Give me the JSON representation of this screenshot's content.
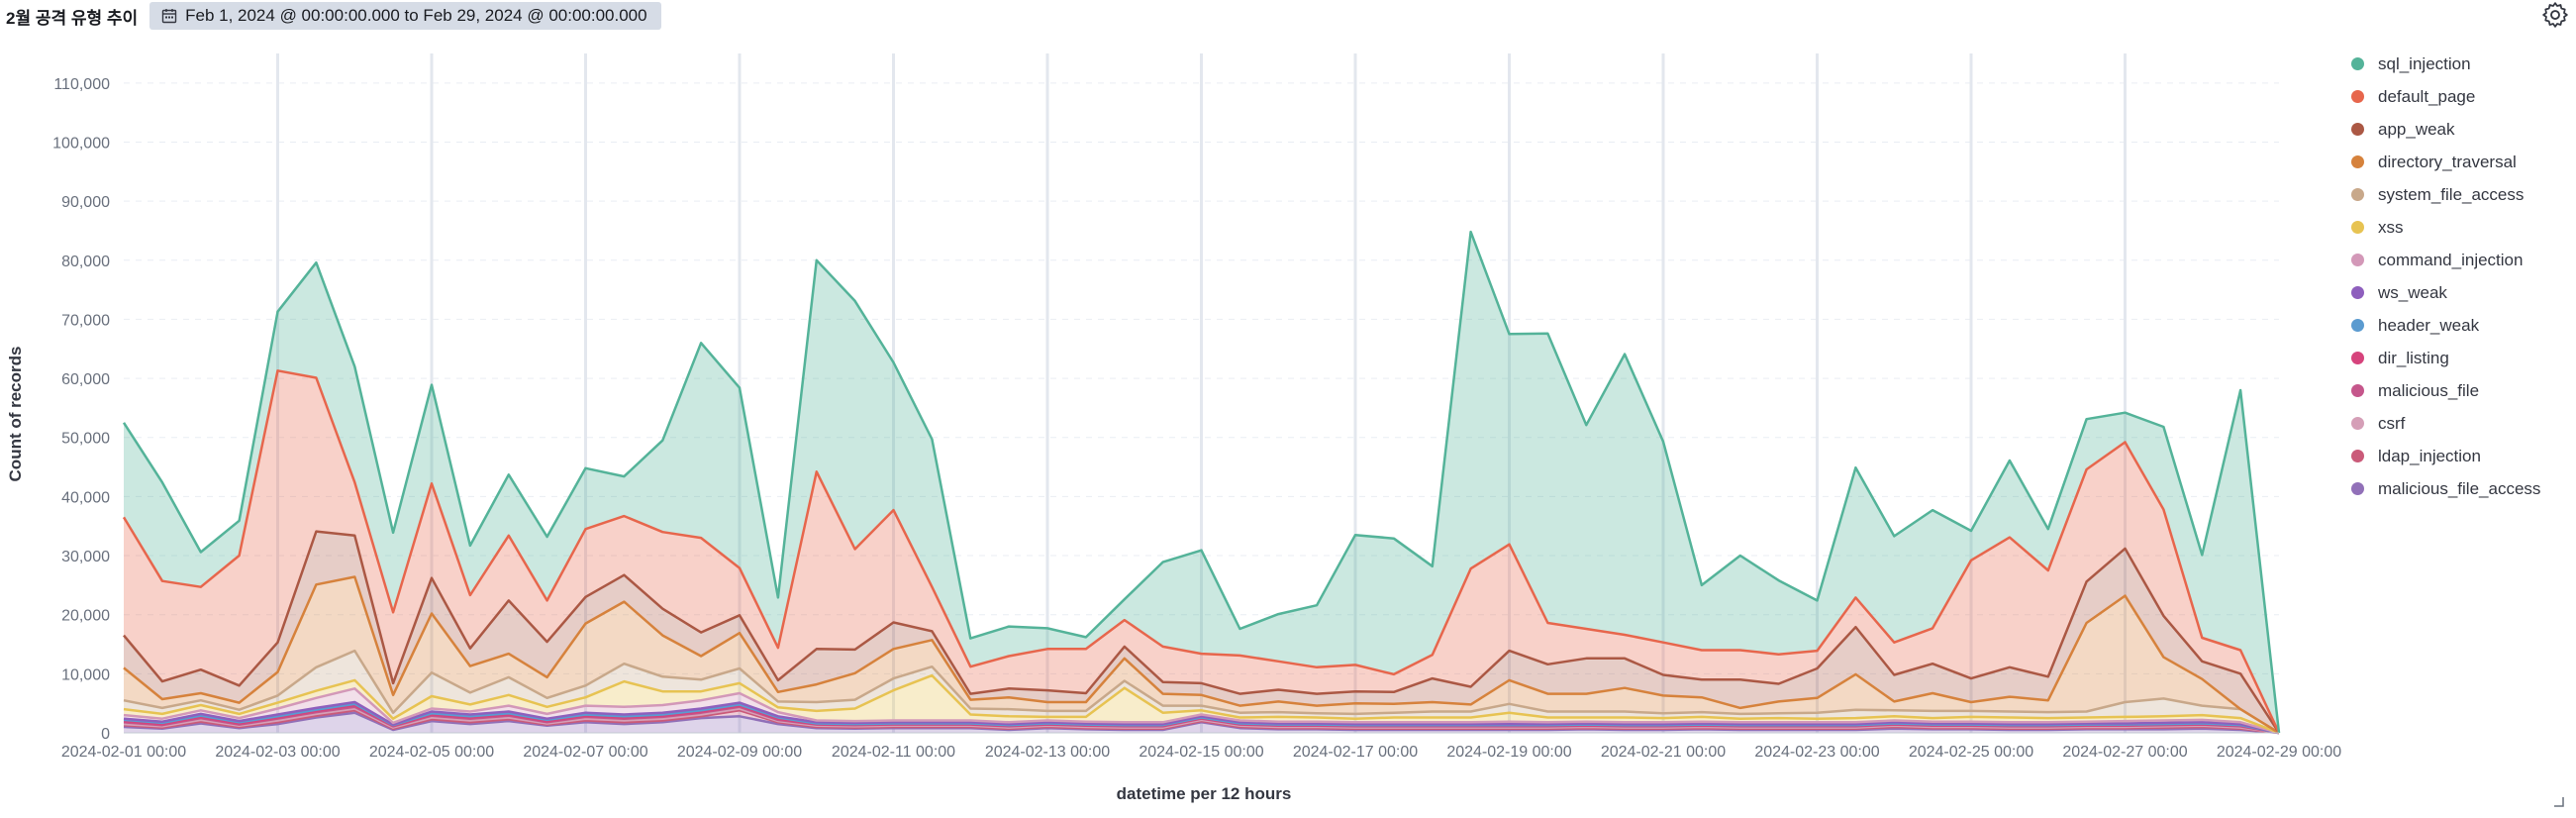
{
  "panel": {
    "title": "2월 공격 유형 추이",
    "time_range": "Feb 1, 2024 @ 00:00:00.000 to Feb 29, 2024 @ 00:00:00.000"
  },
  "chart_data": {
    "type": "area",
    "stacked": true,
    "title": "",
    "xlabel": "datetime per 12 hours",
    "ylabel": "Count of records",
    "ylim": [
      0,
      115000
    ],
    "y_ticks": [
      0,
      10000,
      20000,
      30000,
      40000,
      50000,
      60000,
      70000,
      80000,
      90000,
      100000,
      110000
    ],
    "y_tick_labels": [
      "0",
      "10,000",
      "20,000",
      "30,000",
      "40,000",
      "50,000",
      "60,000",
      "70,000",
      "80,000",
      "90,000",
      "100,000",
      "110,000"
    ],
    "x_tick_labels": [
      "2024-02-01 00:00",
      "2024-02-03 00:00",
      "2024-02-05 00:00",
      "2024-02-07 00:00",
      "2024-02-09 00:00",
      "2024-02-11 00:00",
      "2024-02-13 00:00",
      "2024-02-15 00:00",
      "2024-02-17 00:00",
      "2024-02-19 00:00",
      "2024-02-21 00:00",
      "2024-02-23 00:00",
      "2024-02-25 00:00",
      "2024-02-27 00:00",
      "2024-02-29 00:00"
    ],
    "grid": true,
    "legend_position": "right",
    "x": [
      "2024-02-01 00:00",
      "2024-02-01 12:00",
      "2024-02-02 00:00",
      "2024-02-02 12:00",
      "2024-02-03 00:00",
      "2024-02-03 12:00",
      "2024-02-04 00:00",
      "2024-02-04 12:00",
      "2024-02-05 00:00",
      "2024-02-05 12:00",
      "2024-02-06 00:00",
      "2024-02-06 12:00",
      "2024-02-07 00:00",
      "2024-02-07 12:00",
      "2024-02-08 00:00",
      "2024-02-08 12:00",
      "2024-02-09 00:00",
      "2024-02-09 12:00",
      "2024-02-10 00:00",
      "2024-02-10 12:00",
      "2024-02-11 00:00",
      "2024-02-11 12:00",
      "2024-02-12 00:00",
      "2024-02-12 12:00",
      "2024-02-13 00:00",
      "2024-02-13 12:00",
      "2024-02-14 00:00",
      "2024-02-14 12:00",
      "2024-02-15 00:00",
      "2024-02-15 12:00",
      "2024-02-16 00:00",
      "2024-02-16 12:00",
      "2024-02-17 00:00",
      "2024-02-17 12:00",
      "2024-02-18 00:00",
      "2024-02-18 12:00",
      "2024-02-19 00:00",
      "2024-02-19 12:00",
      "2024-02-20 00:00",
      "2024-02-20 12:00",
      "2024-02-21 00:00",
      "2024-02-21 12:00",
      "2024-02-22 00:00",
      "2024-02-22 12:00",
      "2024-02-23 00:00",
      "2024-02-23 12:00",
      "2024-02-24 00:00",
      "2024-02-24 12:00",
      "2024-02-25 00:00",
      "2024-02-25 12:00",
      "2024-02-26 00:00",
      "2024-02-26 12:00",
      "2024-02-27 00:00",
      "2024-02-27 12:00",
      "2024-02-28 00:00",
      "2024-02-28 12:00",
      "2024-02-29 00:00"
    ],
    "series": [
      {
        "name": "malicious_file_access",
        "color": "#9170b8",
        "values": [
          1000,
          700,
          1600,
          800,
          1500,
          2600,
          3400,
          500,
          2000,
          1500,
          2000,
          1200,
          1800,
          1500,
          1800,
          2500,
          2800,
          1500,
          800,
          700,
          800,
          800,
          800,
          500,
          800,
          600,
          500,
          500,
          1800,
          800,
          600,
          600,
          500,
          500,
          500,
          500,
          500,
          500,
          600,
          500,
          500,
          600,
          500,
          500,
          500,
          500,
          700,
          600,
          600,
          500,
          500,
          600,
          600,
          600,
          700,
          500,
          0
        ]
      },
      {
        "name": "ldap_injection",
        "color": "#ca5a79",
        "values": [
          300,
          200,
          300,
          200,
          300,
          300,
          400,
          200,
          300,
          300,
          300,
          200,
          300,
          300,
          300,
          300,
          1000,
          300,
          200,
          200,
          200,
          200,
          200,
          200,
          200,
          200,
          200,
          200,
          200,
          200,
          200,
          200,
          200,
          200,
          200,
          200,
          200,
          200,
          200,
          200,
          200,
          200,
          200,
          200,
          200,
          200,
          300,
          200,
          200,
          200,
          200,
          200,
          200,
          300,
          300,
          200,
          0
        ]
      },
      {
        "name": "csrf",
        "color": "#d59fb7",
        "values": [
          200,
          200,
          300,
          200,
          300,
          300,
          300,
          200,
          300,
          300,
          300,
          200,
          300,
          300,
          300,
          300,
          300,
          200,
          200,
          200,
          200,
          200,
          200,
          200,
          200,
          200,
          200,
          200,
          200,
          200,
          200,
          200,
          200,
          200,
          200,
          200,
          200,
          200,
          200,
          200,
          200,
          200,
          200,
          200,
          200,
          200,
          200,
          200,
          200,
          200,
          200,
          200,
          200,
          200,
          200,
          200,
          0
        ]
      },
      {
        "name": "malicious_file",
        "color": "#c5568b",
        "values": [
          300,
          200,
          300,
          200,
          300,
          300,
          300,
          200,
          300,
          300,
          300,
          200,
          300,
          300,
          300,
          300,
          300,
          200,
          200,
          200,
          200,
          200,
          200,
          200,
          200,
          200,
          200,
          200,
          200,
          200,
          200,
          200,
          200,
          200,
          200,
          200,
          200,
          200,
          200,
          200,
          200,
          200,
          200,
          200,
          200,
          200,
          200,
          200,
          200,
          200,
          200,
          200,
          200,
          200,
          200,
          200,
          0
        ]
      },
      {
        "name": "dir_listing",
        "color": "#d6437c",
        "values": [
          200,
          200,
          200,
          200,
          200,
          200,
          300,
          100,
          200,
          200,
          200,
          200,
          200,
          200,
          200,
          200,
          200,
          200,
          100,
          100,
          100,
          100,
          100,
          100,
          100,
          100,
          100,
          100,
          100,
          100,
          100,
          100,
          100,
          100,
          100,
          100,
          100,
          100,
          100,
          100,
          100,
          100,
          100,
          100,
          100,
          100,
          100,
          100,
          100,
          100,
          100,
          100,
          100,
          100,
          100,
          100,
          0
        ]
      },
      {
        "name": "header_weak",
        "color": "#5b9bd0",
        "values": [
          200,
          200,
          200,
          200,
          200,
          200,
          200,
          100,
          200,
          200,
          200,
          200,
          200,
          200,
          200,
          200,
          200,
          200,
          100,
          100,
          100,
          100,
          100,
          100,
          100,
          100,
          100,
          100,
          100,
          100,
          100,
          100,
          100,
          100,
          100,
          100,
          100,
          100,
          100,
          100,
          100,
          100,
          100,
          100,
          100,
          100,
          100,
          100,
          100,
          100,
          100,
          100,
          100,
          100,
          100,
          100,
          0
        ]
      },
      {
        "name": "ws_weak",
        "color": "#8e5fbd",
        "values": [
          200,
          200,
          300,
          200,
          300,
          300,
          300,
          100,
          300,
          300,
          300,
          200,
          300,
          300,
          300,
          300,
          300,
          200,
          200,
          200,
          200,
          200,
          200,
          200,
          200,
          200,
          200,
          200,
          200,
          200,
          200,
          200,
          200,
          200,
          200,
          200,
          200,
          200,
          200,
          200,
          200,
          200,
          200,
          200,
          200,
          200,
          200,
          200,
          200,
          200,
          200,
          200,
          200,
          200,
          200,
          200,
          0
        ]
      },
      {
        "name": "command_injection",
        "color": "#d398b8",
        "values": [
          600,
          500,
          600,
          500,
          1000,
          1700,
          2300,
          300,
          500,
          500,
          1000,
          800,
          1200,
          1300,
          1300,
          1400,
          1600,
          700,
          300,
          300,
          300,
          300,
          300,
          300,
          300,
          300,
          300,
          300,
          300,
          300,
          300,
          300,
          300,
          300,
          300,
          300,
          400,
          300,
          300,
          300,
          300,
          300,
          300,
          300,
          300,
          300,
          300,
          300,
          300,
          300,
          300,
          300,
          400,
          400,
          400,
          300,
          0
        ]
      },
      {
        "name": "xss",
        "color": "#e7c352",
        "values": [
          1000,
          800,
          900,
          700,
          1000,
          1200,
          1400,
          700,
          2100,
          1200,
          1800,
          1200,
          1400,
          4300,
          2300,
          1500,
          1700,
          800,
          1600,
          2100,
          5100,
          7600,
          1000,
          1000,
          600,
          800,
          5800,
          1600,
          700,
          500,
          800,
          700,
          600,
          800,
          800,
          800,
          1500,
          800,
          700,
          800,
          700,
          800,
          600,
          700,
          600,
          700,
          700,
          600,
          800,
          800,
          700,
          700,
          700,
          700,
          800,
          700,
          0
        ]
      },
      {
        "name": "system_file_access",
        "color": "#c8a88a",
        "values": [
          1500,
          1000,
          800,
          700,
          1200,
          4000,
          5000,
          1000,
          4000,
          2000,
          3000,
          1500,
          2000,
          3000,
          2500,
          2000,
          2500,
          1000,
          1500,
          1500,
          2000,
          1500,
          1000,
          1200,
          1000,
          1000,
          1200,
          1200,
          800,
          800,
          800,
          700,
          800,
          800,
          1000,
          1000,
          1500,
          1000,
          1000,
          1000,
          800,
          800,
          800,
          800,
          1000,
          1400,
          1000,
          1200,
          1000,
          1000,
          1000,
          1000,
          2500,
          3000,
          1600,
          1500,
          0
        ]
      },
      {
        "name": "directory_traversal",
        "color": "#d6823c",
        "values": [
          5500,
          1500,
          1200,
          1200,
          4000,
          14000,
          12500,
          3000,
          10000,
          4500,
          4000,
          3500,
          10500,
          10500,
          7000,
          4000,
          6000,
          1600,
          3000,
          4500,
          5000,
          4500,
          1500,
          2000,
          1500,
          1500,
          3800,
          2000,
          1800,
          1200,
          1800,
          1300,
          1800,
          1500,
          1600,
          1200,
          4000,
          3000,
          3000,
          4000,
          3000,
          2500,
          1000,
          2000,
          2500,
          6000,
          1500,
          3000,
          1500,
          2500,
          2000,
          15000,
          18000,
          7000,
          4500,
          0,
          0
        ]
      },
      {
        "name": "app_weak",
        "color": "#ab5844",
        "values": [
          5500,
          3000,
          4000,
          2900,
          5000,
          9000,
          7000,
          2000,
          6000,
          3000,
          9000,
          6000,
          4500,
          4500,
          4500,
          4000,
          3000,
          2000,
          6000,
          4000,
          4500,
          1500,
          1000,
          1500,
          2000,
          1500,
          2000,
          2000,
          2000,
          2000,
          2000,
          2000,
          2000,
          2000,
          4000,
          3000,
          5000,
          5000,
          6000,
          5000,
          3500,
          3000,
          4800,
          3000,
          5000,
          8000,
          4500,
          5000,
          4000,
          5000,
          4000,
          7000,
          8000,
          7000,
          3000,
          6000,
          0
        ]
      },
      {
        "name": "default_page",
        "color": "#e7664c",
        "values": [
          20000,
          17000,
          14000,
          22000,
          46000,
          26000,
          9000,
          12000,
          16000,
          9000,
          11000,
          7000,
          11500,
          10000,
          13000,
          16000,
          8000,
          5500,
          30000,
          17000,
          19000,
          7500,
          4600,
          5500,
          7000,
          7500,
          4500,
          6000,
          5000,
          6500,
          4800,
          4500,
          4500,
          3000,
          4000,
          20000,
          18000,
          7000,
          5000,
          4000,
          5500,
          5000,
          5000,
          5000,
          3000,
          5000,
          5500,
          6000,
          20000,
          22000,
          18000,
          19000,
          18000,
          18000,
          4000,
          4000,
          0
        ]
      },
      {
        "name": "sql_injection",
        "color": "#54b399",
        "values": [
          16000,
          16700,
          5900,
          5900,
          10000,
          19500,
          19600,
          13500,
          16700,
          8400,
          10300,
          10800,
          10300,
          6700,
          15500,
          33000,
          30500,
          8500,
          35800,
          42000,
          25000,
          25000,
          4800,
          5000,
          3500,
          2000,
          3500,
          14300,
          17500,
          4500,
          8000,
          10500,
          22000,
          23000,
          15000,
          57000,
          35600,
          49000,
          34500,
          47500,
          34000,
          11000,
          16000,
          12500,
          8500,
          22000,
          18000,
          20000,
          5000,
          13000,
          7000,
          8500,
          5000,
          14000,
          14000,
          44000,
          0
        ]
      }
    ]
  },
  "legend": {
    "items": [
      {
        "label": "sql_injection",
        "color": "#54b399"
      },
      {
        "label": "default_page",
        "color": "#e7664c"
      },
      {
        "label": "app_weak",
        "color": "#ab5844"
      },
      {
        "label": "directory_traversal",
        "color": "#d6823c"
      },
      {
        "label": "system_file_access",
        "color": "#c8a88a"
      },
      {
        "label": "xss",
        "color": "#e7c352"
      },
      {
        "label": "command_injection",
        "color": "#d398b8"
      },
      {
        "label": "ws_weak",
        "color": "#8e5fbd"
      },
      {
        "label": "header_weak",
        "color": "#5b9bd0"
      },
      {
        "label": "dir_listing",
        "color": "#d6437c"
      },
      {
        "label": "malicious_file",
        "color": "#c5568b"
      },
      {
        "label": "csrf",
        "color": "#d59fb7"
      },
      {
        "label": "ldap_injection",
        "color": "#ca5a79"
      },
      {
        "label": "malicious_file_access",
        "color": "#9170b8"
      }
    ]
  }
}
